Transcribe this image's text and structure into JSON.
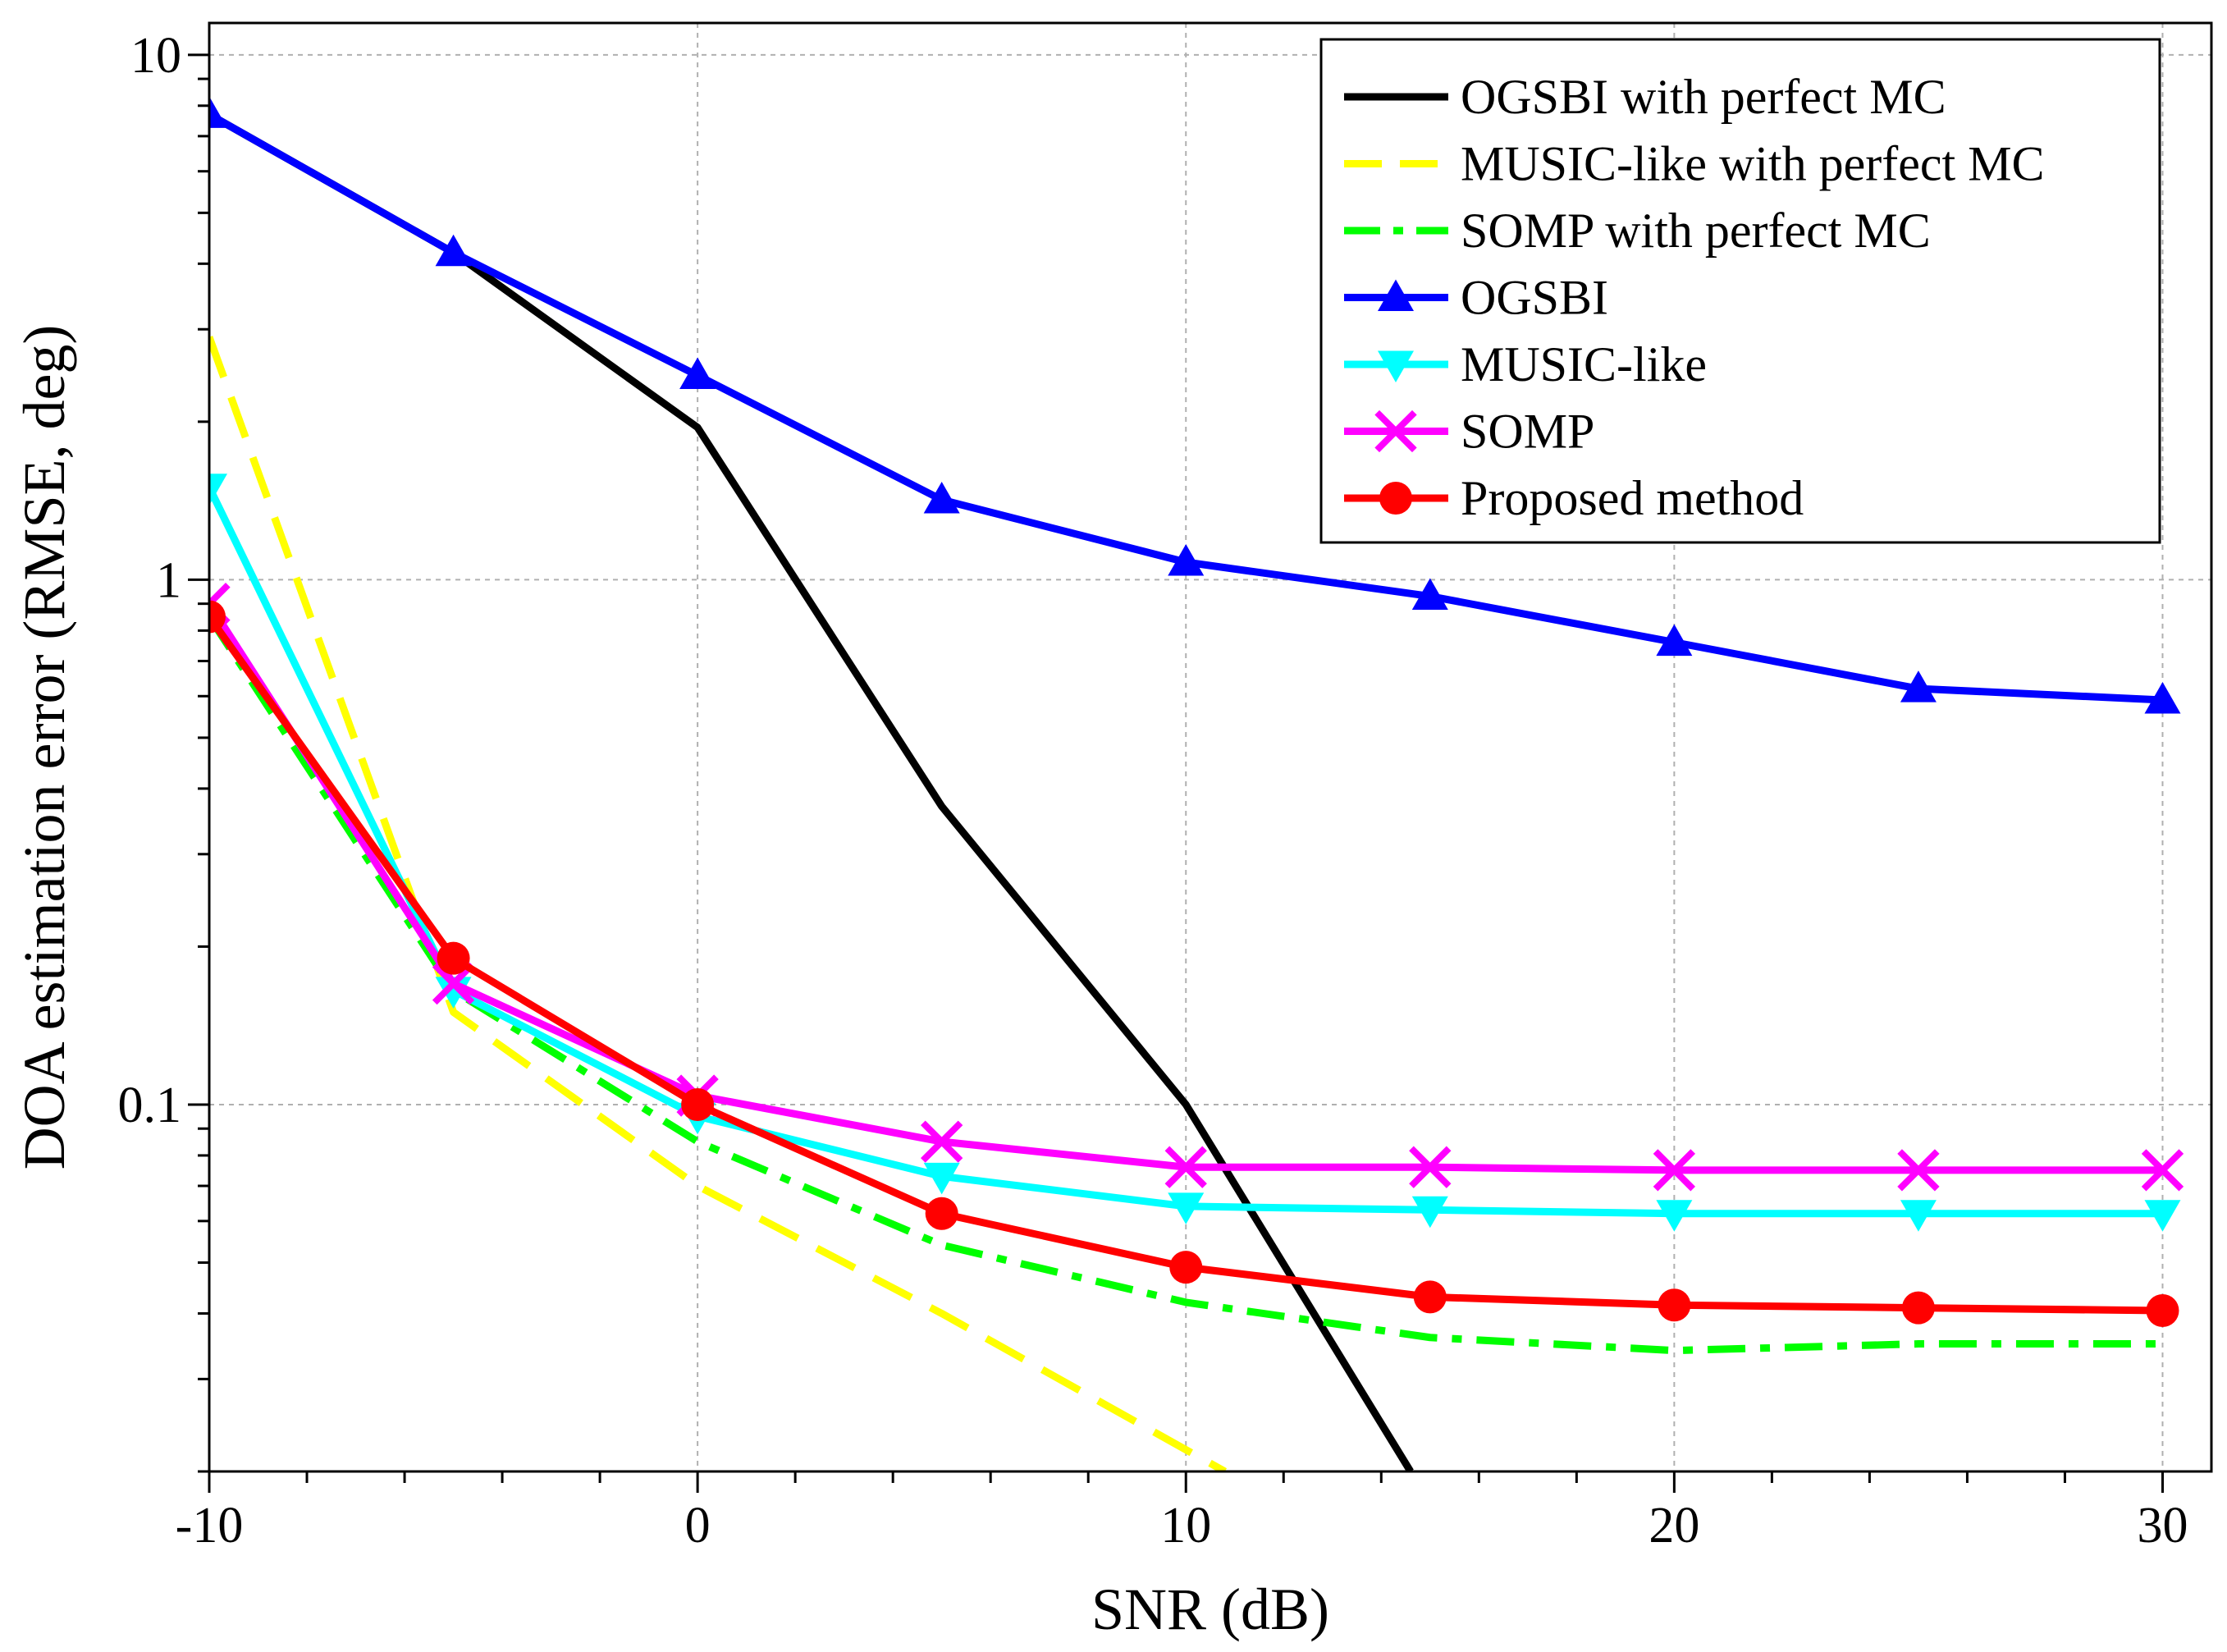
{
  "chart_data": {
    "type": "line",
    "xlabel": "SNR (dB)",
    "ylabel": "DOA estimation error (RMSE, deg)",
    "xscale": "linear",
    "yscale": "log",
    "xlim": [
      -10,
      31
    ],
    "ylim": [
      0.02,
      11.5
    ],
    "xticks": [
      -10,
      0,
      10,
      20,
      30
    ],
    "xtick_labels": [
      "-10",
      "0",
      "10",
      "20",
      "30"
    ],
    "yticks": [
      0.1,
      1,
      10
    ],
    "ytick_labels": [
      "0.1",
      "1",
      "10"
    ],
    "grid": true,
    "legend_position": "top-right",
    "series": [
      {
        "name": "OGSBI with perfect MC",
        "color": "#000000",
        "dash": "solid",
        "marker": "none",
        "x": [
          -10,
          -5,
          0,
          5,
          10,
          14.6
        ],
        "y": [
          7.7,
          4.2,
          1.95,
          0.37,
          0.1,
          0.02
        ]
      },
      {
        "name": "MUSIC-like with perfect MC",
        "color": "#FFFF00",
        "dash": "dashed",
        "marker": "none",
        "x": [
          -10,
          -5,
          0,
          5,
          10,
          10.8
        ],
        "y": [
          2.9,
          0.15,
          0.07,
          0.04,
          0.022,
          0.02
        ]
      },
      {
        "name": "SOMP with perfect MC",
        "color": "#00FF00",
        "dash": "dashdot",
        "marker": "none",
        "x": [
          -10,
          -5,
          0,
          5,
          10,
          15,
          20,
          25,
          30
        ],
        "y": [
          0.85,
          0.165,
          0.085,
          0.054,
          0.042,
          0.036,
          0.034,
          0.035,
          0.035
        ]
      },
      {
        "name": "OGSBI",
        "color": "#0000FF",
        "dash": "solid",
        "marker": "triangle-up",
        "x": [
          -10,
          -5,
          0,
          5,
          10,
          15,
          20,
          25,
          30
        ],
        "y": [
          7.7,
          4.2,
          2.45,
          1.42,
          1.08,
          0.93,
          0.76,
          0.62,
          0.59
        ]
      },
      {
        "name": "MUSIC-like",
        "color": "#00FFFF",
        "dash": "solid",
        "marker": "triangle-down",
        "x": [
          -10,
          -5,
          0,
          5,
          10,
          15,
          20,
          25,
          30
        ],
        "y": [
          1.5,
          0.165,
          0.095,
          0.073,
          0.064,
          0.063,
          0.062,
          0.062,
          0.062
        ]
      },
      {
        "name": "SOMP",
        "color": "#FF00FF",
        "dash": "solid",
        "marker": "x",
        "x": [
          -10,
          -5,
          0,
          5,
          10,
          15,
          20,
          25,
          30
        ],
        "y": [
          0.9,
          0.17,
          0.104,
          0.085,
          0.076,
          0.076,
          0.075,
          0.075,
          0.075
        ]
      },
      {
        "name": "Proposed method",
        "color": "#FF0000",
        "dash": "solid",
        "marker": "circle",
        "x": [
          -10,
          -5,
          0,
          5,
          10,
          15,
          20,
          25,
          30
        ],
        "y": [
          0.85,
          0.19,
          0.1,
          0.062,
          0.049,
          0.043,
          0.0415,
          0.041,
          0.0405
        ]
      }
    ]
  }
}
